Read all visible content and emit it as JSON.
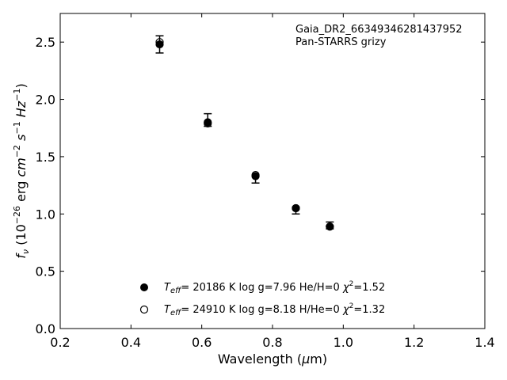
{
  "chart_data": {
    "type": "scatter",
    "title": "",
    "xlabel": "Wavelength (μm)",
    "ylabel": "f_ν (10^-26 erg cm^-2 s^-1 Hz^-1)",
    "xlim": [
      0.2,
      1.4
    ],
    "ylim": [
      0.0,
      2.75
    ],
    "xticks": [
      0.2,
      0.4,
      0.6,
      0.8,
      1.0,
      1.2,
      1.4
    ],
    "xtick_labels": [
      "0.2",
      "0.4",
      "0.6",
      "0.8",
      "1.0",
      "1.2",
      "1.4"
    ],
    "yticks": [
      0.0,
      0.5,
      1.0,
      1.5,
      2.0,
      2.5
    ],
    "ytick_labels": [
      "0.0",
      "0.5",
      "1.0",
      "1.5",
      "2.0",
      "2.5"
    ],
    "grid": false,
    "annotations": [
      "Gaia_DR2_66349346281437952",
      "Pan-STARRS grizy"
    ],
    "observed": {
      "x": [
        0.481,
        0.617,
        0.752,
        0.866,
        0.962
      ],
      "y": [
        2.48,
        1.82,
        1.3,
        1.03,
        0.9
      ],
      "yerr": [
        0.075,
        0.055,
        0.03,
        0.03,
        0.03
      ]
    },
    "series": [
      {
        "name": "T_eff= 20186 K  log g=7.96  He/H=0  χ²=1.52",
        "marker": "filled",
        "x": [
          0.481,
          0.617,
          0.752,
          0.866,
          0.962
        ],
        "y": [
          2.48,
          1.8,
          1.33,
          1.05,
          0.89
        ]
      },
      {
        "name": "T_eff= 24910 K  log g=8.18  H/He=0  χ²=1.32",
        "marker": "open",
        "x": [
          0.481,
          0.617,
          0.752,
          0.866,
          0.962
        ],
        "y": [
          2.5,
          1.79,
          1.34,
          1.05,
          0.89
        ]
      }
    ],
    "legend": {
      "placement": "lower-center",
      "entries": [
        {
          "teff": "= 20186 K",
          "logg": "log g=7.96",
          "comp": "He/H=0",
          "chi": "=1.52"
        },
        {
          "teff": "= 24910 K",
          "logg": "log g=8.18",
          "comp": "H/He=0",
          "chi": "=1.32"
        }
      ]
    }
  }
}
